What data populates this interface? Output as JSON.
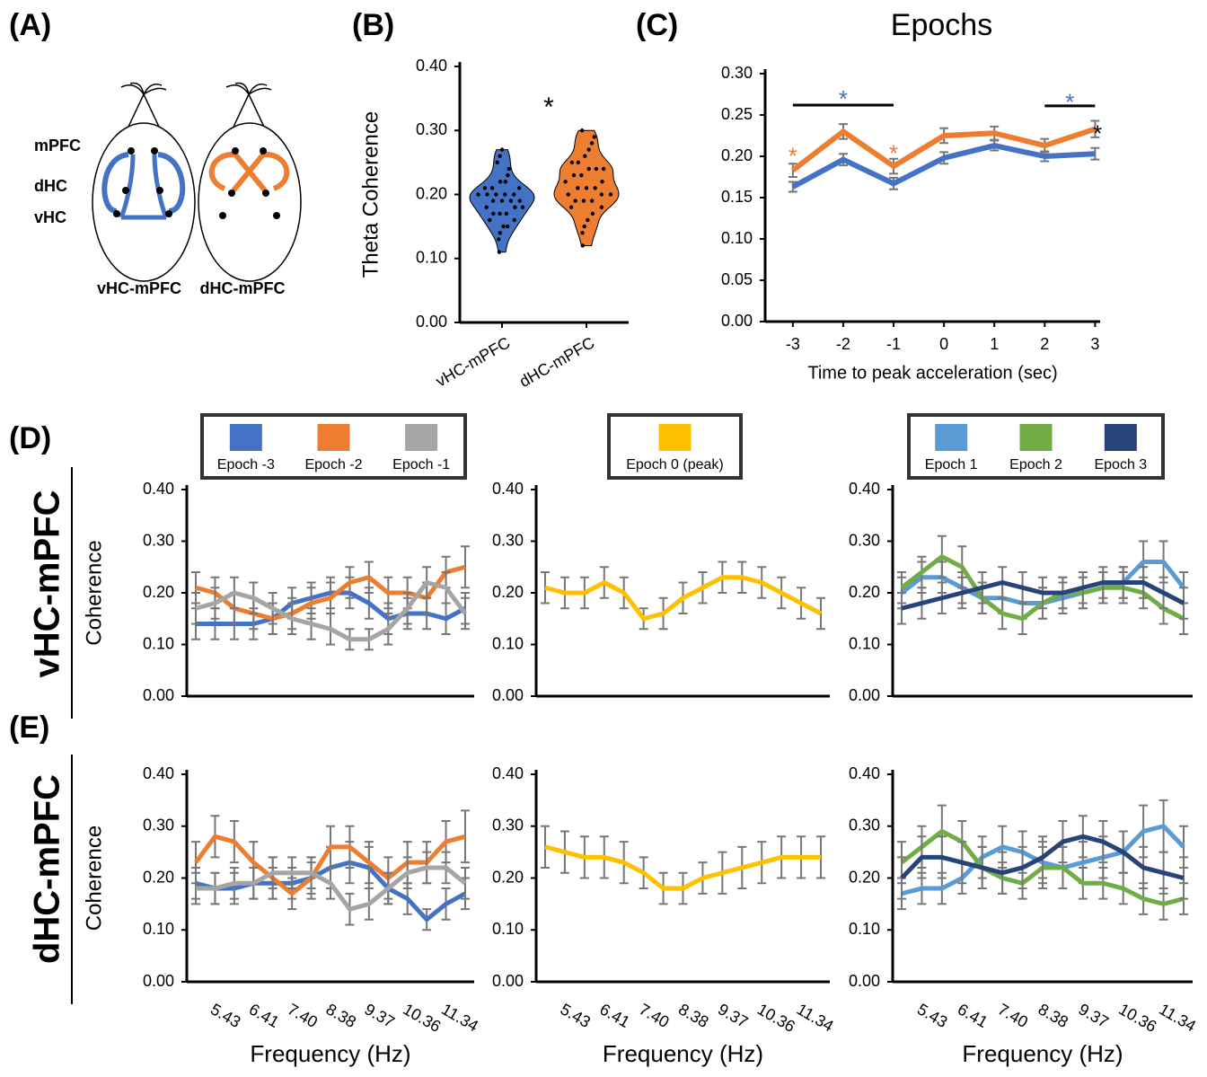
{
  "diagram": {
    "panel": "(A)",
    "regions": [
      "mPFC",
      "dHC",
      "vHC"
    ],
    "labels": [
      "vHC-mPFC",
      "dHC-mPFC"
    ]
  },
  "chart_data": [
    {
      "type": "violin",
      "panel": "(B)",
      "ylabel": "Theta Coherence",
      "annotation": "*",
      "categories": [
        "vHC-mPFC",
        "dHC-mPFC"
      ],
      "colors": [
        "#4472c4",
        "#ed7d31"
      ],
      "values": [
        [
          0.11,
          0.13,
          0.14,
          0.15,
          0.15,
          0.16,
          0.16,
          0.17,
          0.17,
          0.17,
          0.18,
          0.18,
          0.18,
          0.19,
          0.19,
          0.19,
          0.19,
          0.2,
          0.2,
          0.2,
          0.2,
          0.2,
          0.21,
          0.21,
          0.21,
          0.22,
          0.22,
          0.23,
          0.24,
          0.25,
          0.26,
          0.27
        ],
        [
          0.12,
          0.14,
          0.15,
          0.16,
          0.17,
          0.18,
          0.18,
          0.19,
          0.19,
          0.19,
          0.2,
          0.2,
          0.2,
          0.21,
          0.21,
          0.21,
          0.22,
          0.22,
          0.23,
          0.23,
          0.24,
          0.24,
          0.24,
          0.25,
          0.25,
          0.26,
          0.27,
          0.28,
          0.29,
          0.3
        ]
      ],
      "ylim": [
        0,
        0.4
      ],
      "yticks": [
        {
          "value": 0,
          "label": "0.00"
        },
        {
          "value": 0.1,
          "label": "0.10"
        },
        {
          "value": 0.2,
          "label": "0.20"
        },
        {
          "value": 0.3,
          "label": "0.30"
        },
        {
          "value": 0.4,
          "label": "0.40"
        }
      ]
    },
    {
      "type": "line",
      "panel": "(C)",
      "title": "Epochs",
      "xlabel": "Time to peak acceleration (sec)",
      "x": [
        -3,
        -2,
        -1,
        0,
        1,
        2,
        3
      ],
      "xlim": [
        -3.55,
        3.1
      ],
      "xticks": [
        -3,
        -2,
        -1,
        0,
        1,
        2,
        3
      ],
      "ylim": [
        0,
        0.3
      ],
      "yticks": [
        {
          "value": 0,
          "label": "0.00"
        },
        {
          "value": 0.05,
          "label": "0.05"
        },
        {
          "value": 0.1,
          "label": "0.10"
        },
        {
          "value": 0.15,
          "label": "0.15"
        },
        {
          "value": 0.2,
          "label": "0.20"
        },
        {
          "value": 0.25,
          "label": "0.25"
        },
        {
          "value": 0.3,
          "label": "0.30"
        }
      ],
      "series": [
        {
          "color": "#ed7d31",
          "values": [
            0.183,
            0.23,
            0.188,
            0.225,
            0.228,
            0.213,
            0.233
          ],
          "errors": [
            0.008,
            0.009,
            0.009,
            0.009,
            0.008,
            0.008,
            0.01
          ]
        },
        {
          "color": "#4472c4",
          "values": [
            0.163,
            0.196,
            0.167,
            0.198,
            0.213,
            0.2,
            0.203
          ],
          "errors": [
            0.006,
            0.007,
            0.007,
            0.007,
            0.006,
            0.006,
            0.007
          ]
        }
      ],
      "annotations": [
        {
          "text": "*",
          "color": "#ed7d31",
          "x": -3,
          "y": 0.205
        },
        {
          "text": "*",
          "color": "#ed7d31",
          "x": -1,
          "y": 0.208
        },
        {
          "text": "*",
          "color": "#4472c4",
          "x": -2,
          "y": 0.274
        },
        {
          "text": "*",
          "color": "#4472c4",
          "x": 2.5,
          "y": 0.27
        },
        {
          "text": "*",
          "color": "#000000",
          "x": 3.05,
          "y": 0.232
        }
      ],
      "brackets": [
        {
          "x": [
            -3,
            -1
          ],
          "y": 0.262
        },
        {
          "x": [
            2,
            3
          ],
          "y": 0.261
        }
      ]
    },
    {
      "type": "line",
      "panel": "(D)",
      "row_label": "vHC-mPFC",
      "ylabel": "Coherence",
      "ylim": [
        0,
        0.4
      ],
      "yticks": [
        {
          "value": 0,
          "label": "0.00"
        },
        {
          "value": 0.1,
          "label": "0.10"
        },
        {
          "value": 0.2,
          "label": "0.20"
        },
        {
          "value": 0.3,
          "label": "0.30"
        },
        {
          "value": 0.4,
          "label": "0.40"
        }
      ],
      "series": [
        {
          "name": "Epoch -3",
          "color": "#4472c4",
          "values": [
            0.14,
            0.14,
            0.14,
            0.14,
            0.15,
            0.18,
            0.19,
            0.2,
            0.2,
            0.18,
            0.15,
            0.16,
            0.16,
            0.15,
            0.17
          ],
          "errors": [
            0.03,
            0.03,
            0.03,
            0.03,
            0.03,
            0.03,
            0.03,
            0.03,
            0.03,
            0.03,
            0.03,
            0.03,
            0.03,
            0.03,
            0.03
          ]
        },
        {
          "name": "Epoch -2",
          "color": "#ed7d31",
          "values": [
            0.21,
            0.2,
            0.17,
            0.16,
            0.15,
            0.16,
            0.18,
            0.19,
            0.22,
            0.23,
            0.2,
            0.2,
            0.19,
            0.24,
            0.25
          ],
          "errors": [
            0.03,
            0.03,
            0.03,
            0.03,
            0.03,
            0.03,
            0.03,
            0.03,
            0.03,
            0.03,
            0.03,
            0.03,
            0.03,
            0.03,
            0.04
          ]
        },
        {
          "name": "Epoch -1",
          "color": "#a5a5a5",
          "values": [
            0.17,
            0.18,
            0.2,
            0.19,
            0.17,
            0.15,
            0.14,
            0.13,
            0.11,
            0.11,
            0.13,
            0.17,
            0.22,
            0.21,
            0.16
          ],
          "errors": [
            0.03,
            0.03,
            0.03,
            0.03,
            0.03,
            0.03,
            0.03,
            0.03,
            0.02,
            0.02,
            0.03,
            0.03,
            0.03,
            0.03,
            0.03
          ]
        }
      ]
    },
    {
      "type": "line",
      "ylim": [
        0,
        0.4
      ],
      "yticks": [
        {
          "value": 0,
          "label": "0.00"
        },
        {
          "value": 0.1,
          "label": "0.10"
        },
        {
          "value": 0.2,
          "label": "0.20"
        },
        {
          "value": 0.3,
          "label": "0.30"
        },
        {
          "value": 0.4,
          "label": "0.40"
        }
      ],
      "series": [
        {
          "name": "Epoch 0 (peak)",
          "color": "#ffc000",
          "values": [
            0.21,
            0.2,
            0.2,
            0.22,
            0.2,
            0.15,
            0.16,
            0.19,
            0.21,
            0.23,
            0.23,
            0.22,
            0.2,
            0.18,
            0.16
          ],
          "errors": [
            0.03,
            0.03,
            0.03,
            0.03,
            0.03,
            0.02,
            0.03,
            0.03,
            0.03,
            0.03,
            0.03,
            0.03,
            0.03,
            0.03,
            0.03
          ]
        }
      ]
    },
    {
      "type": "line",
      "ylim": [
        0,
        0.4
      ],
      "yticks": [
        {
          "value": 0,
          "label": "0.00"
        },
        {
          "value": 0.1,
          "label": "0.10"
        },
        {
          "value": 0.2,
          "label": "0.20"
        },
        {
          "value": 0.3,
          "label": "0.30"
        },
        {
          "value": 0.4,
          "label": "0.40"
        }
      ],
      "series": [
        {
          "name": "Epoch 1",
          "color": "#5b9bd5",
          "values": [
            0.2,
            0.23,
            0.23,
            0.21,
            0.19,
            0.19,
            0.18,
            0.18,
            0.19,
            0.2,
            0.21,
            0.22,
            0.26,
            0.26,
            0.21
          ],
          "errors": [
            0.03,
            0.03,
            0.03,
            0.03,
            0.03,
            0.03,
            0.03,
            0.03,
            0.03,
            0.03,
            0.03,
            0.03,
            0.04,
            0.04,
            0.03
          ]
        },
        {
          "name": "Epoch 2",
          "color": "#70ad47",
          "values": [
            0.21,
            0.24,
            0.27,
            0.25,
            0.19,
            0.16,
            0.15,
            0.18,
            0.2,
            0.2,
            0.21,
            0.21,
            0.2,
            0.17,
            0.15
          ],
          "errors": [
            0.03,
            0.03,
            0.04,
            0.04,
            0.03,
            0.03,
            0.03,
            0.03,
            0.03,
            0.03,
            0.03,
            0.03,
            0.03,
            0.03,
            0.03
          ]
        },
        {
          "name": "Epoch 3",
          "color": "#264478",
          "values": [
            0.17,
            0.18,
            0.19,
            0.2,
            0.21,
            0.22,
            0.21,
            0.2,
            0.2,
            0.21,
            0.22,
            0.22,
            0.22,
            0.2,
            0.18
          ],
          "errors": [
            0.03,
            0.03,
            0.03,
            0.03,
            0.03,
            0.03,
            0.03,
            0.03,
            0.03,
            0.03,
            0.03,
            0.03,
            0.03,
            0.03,
            0.03
          ]
        }
      ]
    },
    {
      "type": "line",
      "panel": "(E)",
      "row_label": "dHC-mPFC",
      "ylabel": "Coherence",
      "xlabel": "Frequency (Hz)",
      "ylim": [
        0,
        0.4
      ],
      "categories": [
        null,
        "5.43",
        null,
        "6.41",
        null,
        "7.40",
        null,
        "8.38",
        null,
        "9.37",
        null,
        "10.36",
        null,
        "11.34",
        null
      ],
      "yticks": [
        {
          "value": 0,
          "label": "0.00"
        },
        {
          "value": 0.1,
          "label": "0.10"
        },
        {
          "value": 0.2,
          "label": "0.20"
        },
        {
          "value": 0.3,
          "label": "0.30"
        },
        {
          "value": 0.4,
          "label": "0.40"
        }
      ],
      "series": [
        {
          "color": "#4472c4",
          "values": [
            0.19,
            0.18,
            0.18,
            0.19,
            0.19,
            0.19,
            0.2,
            0.22,
            0.23,
            0.22,
            0.18,
            0.16,
            0.12,
            0.15,
            0.17
          ],
          "errors": [
            0.03,
            0.03,
            0.03,
            0.03,
            0.03,
            0.03,
            0.03,
            0.04,
            0.04,
            0.04,
            0.03,
            0.03,
            0.02,
            0.03,
            0.03
          ]
        },
        {
          "color": "#ed7d31",
          "values": [
            0.23,
            0.28,
            0.27,
            0.23,
            0.2,
            0.17,
            0.2,
            0.26,
            0.26,
            0.23,
            0.2,
            0.23,
            0.23,
            0.27,
            0.28
          ],
          "errors": [
            0.04,
            0.04,
            0.04,
            0.04,
            0.04,
            0.03,
            0.04,
            0.04,
            0.04,
            0.04,
            0.04,
            0.04,
            0.04,
            0.04,
            0.05
          ]
        },
        {
          "color": "#a5a5a5",
          "values": [
            0.18,
            0.18,
            0.19,
            0.19,
            0.21,
            0.21,
            0.21,
            0.19,
            0.14,
            0.15,
            0.18,
            0.21,
            0.22,
            0.22,
            0.19
          ],
          "errors": [
            0.03,
            0.03,
            0.03,
            0.03,
            0.03,
            0.03,
            0.03,
            0.03,
            0.03,
            0.03,
            0.03,
            0.03,
            0.03,
            0.03,
            0.03
          ]
        }
      ]
    },
    {
      "type": "line",
      "xlabel": "Frequency (Hz)",
      "ylim": [
        0,
        0.4
      ],
      "categories": [
        null,
        "5.43",
        null,
        "6.41",
        null,
        "7.40",
        null,
        "8.38",
        null,
        "9.37",
        null,
        "10.36",
        null,
        "11.34",
        null
      ],
      "yticks": [
        {
          "value": 0,
          "label": "0.00"
        },
        {
          "value": 0.1,
          "label": "0.10"
        },
        {
          "value": 0.2,
          "label": "0.20"
        },
        {
          "value": 0.3,
          "label": "0.30"
        },
        {
          "value": 0.4,
          "label": "0.40"
        }
      ],
      "series": [
        {
          "color": "#ffc000",
          "values": [
            0.26,
            0.25,
            0.24,
            0.24,
            0.23,
            0.21,
            0.18,
            0.18,
            0.2,
            0.21,
            0.22,
            0.23,
            0.24,
            0.24,
            0.24
          ],
          "errors": [
            0.04,
            0.04,
            0.04,
            0.04,
            0.04,
            0.03,
            0.03,
            0.03,
            0.03,
            0.04,
            0.04,
            0.04,
            0.04,
            0.04,
            0.04
          ]
        }
      ]
    },
    {
      "type": "line",
      "xlabel": "Frequency (Hz)",
      "ylim": [
        0,
        0.4
      ],
      "categories": [
        null,
        "5.43",
        null,
        "6.41",
        null,
        "7.40",
        null,
        "8.38",
        null,
        "9.37",
        null,
        "10.36",
        null,
        "11.34",
        null
      ],
      "yticks": [
        {
          "value": 0,
          "label": "0.00"
        },
        {
          "value": 0.1,
          "label": "0.10"
        },
        {
          "value": 0.2,
          "label": "0.20"
        },
        {
          "value": 0.3,
          "label": "0.30"
        },
        {
          "value": 0.4,
          "label": "0.40"
        }
      ],
      "series": [
        {
          "color": "#5b9bd5",
          "values": [
            0.17,
            0.18,
            0.18,
            0.2,
            0.24,
            0.26,
            0.25,
            0.23,
            0.22,
            0.23,
            0.24,
            0.25,
            0.29,
            0.3,
            0.26
          ],
          "errors": [
            0.03,
            0.03,
            0.03,
            0.03,
            0.04,
            0.04,
            0.04,
            0.04,
            0.04,
            0.04,
            0.04,
            0.04,
            0.05,
            0.05,
            0.04
          ]
        },
        {
          "color": "#70ad47",
          "values": [
            0.23,
            0.26,
            0.29,
            0.27,
            0.22,
            0.2,
            0.19,
            0.22,
            0.22,
            0.19,
            0.19,
            0.18,
            0.16,
            0.15,
            0.16
          ],
          "errors": [
            0.04,
            0.04,
            0.05,
            0.04,
            0.04,
            0.03,
            0.03,
            0.04,
            0.04,
            0.03,
            0.03,
            0.03,
            0.03,
            0.03,
            0.03
          ]
        },
        {
          "color": "#264478",
          "values": [
            0.2,
            0.24,
            0.24,
            0.23,
            0.22,
            0.21,
            0.22,
            0.24,
            0.27,
            0.28,
            0.27,
            0.25,
            0.22,
            0.21,
            0.2
          ],
          "errors": [
            0.04,
            0.04,
            0.04,
            0.04,
            0.04,
            0.04,
            0.04,
            0.04,
            0.04,
            0.04,
            0.04,
            0.04,
            0.04,
            0.04,
            0.04
          ]
        }
      ]
    }
  ]
}
